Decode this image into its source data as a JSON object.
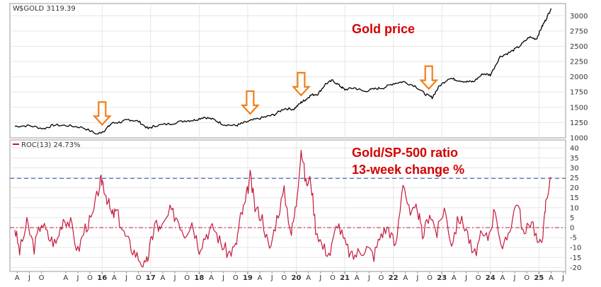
{
  "chart_data": [
    {
      "type": "line",
      "legend": "$GOLD 3119.39",
      "annotation": "Gold price",
      "ylim": [
        1000,
        3200
      ],
      "yticks": [
        1000,
        1250,
        1500,
        1750,
        2000,
        2250,
        2500,
        2750,
        3000
      ],
      "grid": true,
      "colors": {
        "line": "#000000",
        "arrow_fill": "#ffffff",
        "arrow_stroke": "#f07f1a"
      },
      "arrows_at": [
        2016.0,
        2019.05,
        2020.1,
        2022.73
      ],
      "series": [
        {
          "x": [
            2014.2,
            2014.5,
            2014.8,
            2015.0,
            2015.3,
            2015.6,
            2015.9,
            2016.05,
            2016.2,
            2016.4,
            2016.55,
            2016.75,
            2016.95,
            2017.1,
            2017.4,
            2017.7,
            2017.9,
            2018.1,
            2018.3,
            2018.5,
            2018.75,
            2018.9,
            2019.1,
            2019.35,
            2019.55,
            2019.75,
            2019.95,
            2020.1,
            2020.2,
            2020.3,
            2020.45,
            2020.6,
            2020.75,
            2020.9,
            2021.0,
            2021.2,
            2021.4,
            2021.6,
            2021.8,
            2022.0,
            2022.2,
            2022.45,
            2022.65,
            2022.8,
            2022.95,
            2023.15,
            2023.3,
            2023.5,
            2023.65,
            2023.85,
            2024.0,
            2024.2,
            2024.4,
            2024.6,
            2024.8,
            2024.95,
            2025.05,
            2025.15,
            2025.25
          ],
          "y": [
            1190,
            1200,
            1150,
            1210,
            1200,
            1170,
            1060,
            1120,
            1240,
            1260,
            1300,
            1270,
            1150,
            1200,
            1230,
            1280,
            1290,
            1340,
            1300,
            1220,
            1200,
            1240,
            1290,
            1340,
            1380,
            1480,
            1470,
            1580,
            1630,
            1700,
            1720,
            1880,
            1940,
            1850,
            1790,
            1820,
            1760,
            1800,
            1820,
            1890,
            1920,
            1850,
            1720,
            1660,
            1850,
            1980,
            1950,
            1920,
            1920,
            2050,
            2030,
            2330,
            2400,
            2500,
            2650,
            2620,
            2800,
            2950,
            3120
          ]
        }
      ]
    },
    {
      "type": "line",
      "legend": "ROC(13) 24.73%",
      "annotation": [
        "Gold/SP-500 ratio",
        "13-week change %"
      ],
      "ylim": [
        -22,
        44
      ],
      "yticks": [
        -20,
        -15,
        -10,
        -5,
        0,
        5,
        10,
        15,
        20,
        25,
        30,
        35,
        40
      ],
      "reference_lines": [
        24.73,
        0
      ],
      "grid": true,
      "colors": {
        "line": "#c41a3b",
        "ref_top": "#2b4aa8",
        "ref_zero": "#c41a3b"
      },
      "series": [
        {
          "name": "ROC(13)",
          "x": [
            2014.2,
            2014.3,
            2014.45,
            2014.6,
            2014.75,
            2014.9,
            2015.05,
            2015.2,
            2015.35,
            2015.5,
            2015.65,
            2015.8,
            2015.95,
            2016.0,
            2016.1,
            2016.2,
            2016.3,
            2016.45,
            2016.6,
            2016.75,
            2016.9,
            2017.0,
            2017.1,
            2017.2,
            2017.4,
            2017.55,
            2017.7,
            2017.85,
            2018.0,
            2018.15,
            2018.3,
            2018.45,
            2018.6,
            2018.75,
            2018.85,
            2018.95,
            2019.05,
            2019.15,
            2019.3,
            2019.45,
            2019.6,
            2019.75,
            2019.9,
            2020.0,
            2020.1,
            2020.2,
            2020.3,
            2020.4,
            2020.55,
            2020.7,
            2020.85,
            2021.0,
            2021.15,
            2021.3,
            2021.45,
            2021.6,
            2021.75,
            2021.9,
            2022.05,
            2022.2,
            2022.35,
            2022.5,
            2022.6,
            2022.75,
            2022.9,
            2023.05,
            2023.2,
            2023.35,
            2023.5,
            2023.65,
            2023.8,
            2023.95,
            2024.1,
            2024.25,
            2024.4,
            2024.55,
            2024.7,
            2024.85,
            2025.0,
            2025.1,
            2025.15,
            2025.25
          ],
          "y": [
            0,
            -12,
            2,
            -10,
            3,
            -5,
            -8,
            5,
            2,
            -12,
            0,
            5,
            22,
            24,
            15,
            6,
            8,
            -3,
            -10,
            -15,
            -20,
            -8,
            3,
            -2,
            8,
            5,
            -3,
            3,
            -10,
            -3,
            0,
            -8,
            -13,
            -10,
            5,
            12,
            26,
            10,
            5,
            -12,
            5,
            18,
            -3,
            12,
            40,
            22,
            24,
            0,
            -10,
            -13,
            3,
            -8,
            -15,
            -12,
            -10,
            -14,
            -3,
            0,
            -10,
            24,
            5,
            10,
            -5,
            8,
            -3,
            10,
            -8,
            5,
            0,
            -15,
            -5,
            -5,
            10,
            -13,
            0,
            14,
            -5,
            5,
            -10,
            0,
            15,
            25
          ]
        }
      ]
    }
  ],
  "x_axis": {
    "range": [
      2014.1,
      2025.55
    ],
    "year_labels": [
      {
        "x": 2016.0,
        "label": "16"
      },
      {
        "x": 2017.0,
        "label": "17"
      },
      {
        "x": 2018.0,
        "label": "18"
      },
      {
        "x": 2019.0,
        "label": "19"
      },
      {
        "x": 2020.0,
        "label": "20"
      },
      {
        "x": 2021.0,
        "label": "21"
      },
      {
        "x": 2022.0,
        "label": "22"
      },
      {
        "x": 2023.0,
        "label": "23"
      },
      {
        "x": 2024.0,
        "label": "24"
      },
      {
        "x": 2025.0,
        "label": "25"
      }
    ],
    "month_labels": [
      {
        "x": 2014.25,
        "label": "A"
      },
      {
        "x": 2014.5,
        "label": "J"
      },
      {
        "x": 2014.75,
        "label": "O"
      },
      {
        "x": 2015.25,
        "label": "A"
      },
      {
        "x": 2015.5,
        "label": "J"
      },
      {
        "x": 2015.75,
        "label": "O"
      },
      {
        "x": 2016.25,
        "label": "A"
      },
      {
        "x": 2016.5,
        "label": "J"
      },
      {
        "x": 2016.75,
        "label": "O"
      },
      {
        "x": 2017.25,
        "label": "A"
      },
      {
        "x": 2017.5,
        "label": "J"
      },
      {
        "x": 2017.75,
        "label": "O"
      },
      {
        "x": 2018.25,
        "label": "A"
      },
      {
        "x": 2018.5,
        "label": "J"
      },
      {
        "x": 2018.75,
        "label": "O"
      },
      {
        "x": 2019.25,
        "label": "A"
      },
      {
        "x": 2019.5,
        "label": "J"
      },
      {
        "x": 2019.75,
        "label": "O"
      },
      {
        "x": 2020.25,
        "label": "A"
      },
      {
        "x": 2020.5,
        "label": "J"
      },
      {
        "x": 2020.75,
        "label": "O"
      },
      {
        "x": 2021.25,
        "label": "A"
      },
      {
        "x": 2021.5,
        "label": "J"
      },
      {
        "x": 2021.75,
        "label": "O"
      },
      {
        "x": 2022.25,
        "label": "A"
      },
      {
        "x": 2022.5,
        "label": "J"
      },
      {
        "x": 2022.75,
        "label": "O"
      },
      {
        "x": 2023.25,
        "label": "A"
      },
      {
        "x": 2023.5,
        "label": "J"
      },
      {
        "x": 2023.75,
        "label": "O"
      },
      {
        "x": 2024.25,
        "label": "A"
      },
      {
        "x": 2024.5,
        "label": "J"
      },
      {
        "x": 2024.75,
        "label": "O"
      },
      {
        "x": 2025.25,
        "label": "A"
      },
      {
        "x": 2025.5,
        "label": "J"
      }
    ]
  }
}
